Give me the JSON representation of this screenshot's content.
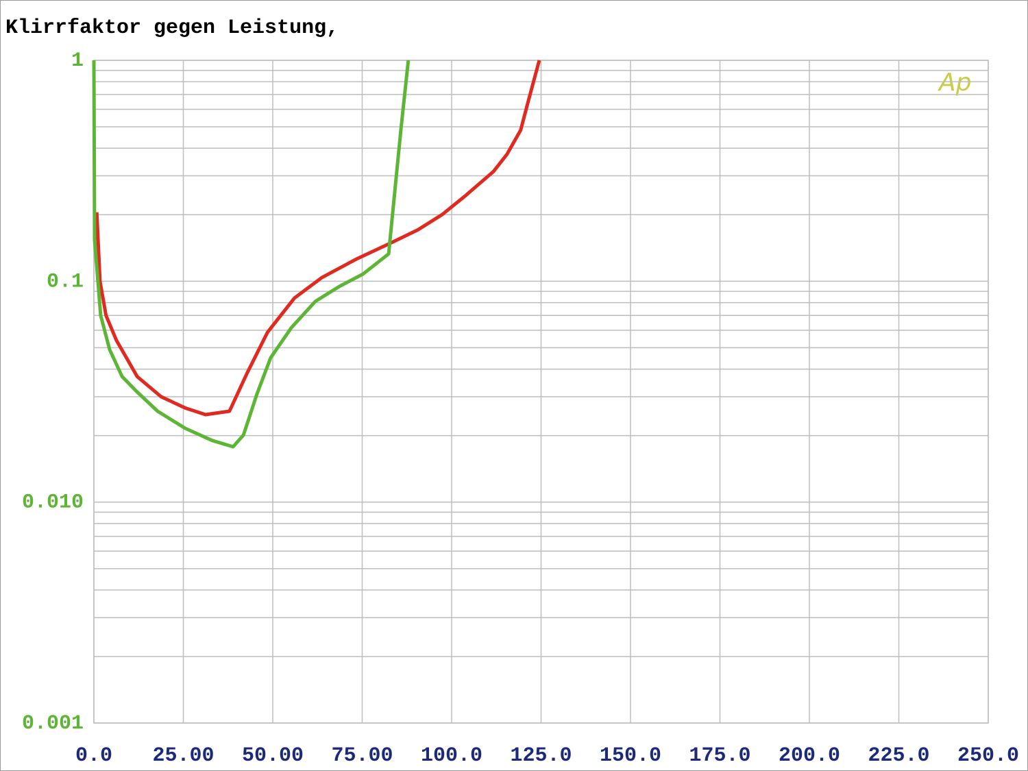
{
  "chart_data": {
    "type": "line",
    "title": "Klirrfaktor gegen Leistung,",
    "annotation": "Ap",
    "xlim": [
      0,
      250
    ],
    "xticks": [
      {
        "value": 0,
        "label": "0.0"
      },
      {
        "value": 25,
        "label": "25.00"
      },
      {
        "value": 50,
        "label": "50.00"
      },
      {
        "value": 75,
        "label": "75.00"
      },
      {
        "value": 100,
        "label": "100.0"
      },
      {
        "value": 125,
        "label": "125.0"
      },
      {
        "value": 150,
        "label": "150.0"
      },
      {
        "value": 175,
        "label": "175.0"
      },
      {
        "value": 200,
        "label": "200.0"
      },
      {
        "value": 225,
        "label": "225.0"
      },
      {
        "value": 250,
        "label": "250.0"
      }
    ],
    "ylim": [
      0.001,
      1
    ],
    "log_y": true,
    "grid": true,
    "yticks": [
      0.001,
      {
        "value": 0.01,
        "label": "0.010"
      },
      0.1,
      1
    ],
    "series": [
      {
        "color": "#e02a20",
        "x": [
          0.8,
          1.7,
          3.4,
          6.3,
          12.1,
          18.8,
          25.5,
          31.2,
          37.9,
          42.7,
          48.5,
          56.1,
          63.8,
          73.4,
          83.0,
          90.6,
          97.3,
          104.0,
          111.7,
          115.5,
          119.3,
          121.3,
          124.5
        ],
        "values": [
          0.205,
          0.1,
          0.07,
          0.054,
          0.037,
          0.03,
          0.0267,
          0.0249,
          0.0258,
          0.038,
          0.0586,
          0.084,
          0.104,
          0.126,
          0.149,
          0.171,
          0.2,
          0.245,
          0.314,
          0.376,
          0.483,
          0.642,
          1
        ]
      },
      {
        "color": "#5db535",
        "x": [
          0,
          0.2,
          1.9,
          4.4,
          7.9,
          12.1,
          17.8,
          25.5,
          33.1,
          38.9,
          41.8,
          45.6,
          49.4,
          55.2,
          61.9,
          68.6,
          75.3,
          82.4,
          83.9,
          85.8,
          87.9
        ],
        "values": [
          1,
          0.154,
          0.07,
          0.049,
          0.037,
          0.0315,
          0.0258,
          0.0216,
          0.019,
          0.0178,
          0.0201,
          0.0309,
          0.045,
          0.0616,
          0.081,
          0.0947,
          0.108,
          0.133,
          0.236,
          0.483,
          1
        ]
      }
    ]
  }
}
